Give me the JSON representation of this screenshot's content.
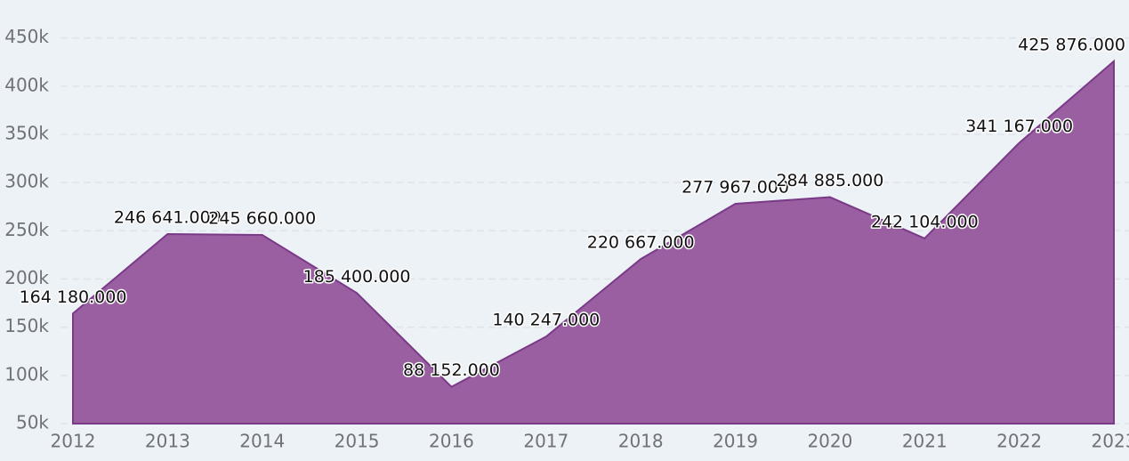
{
  "chart_data": {
    "type": "area",
    "categories": [
      "2012",
      "2013",
      "2014",
      "2015",
      "2016",
      "2017",
      "2018",
      "2019",
      "2020",
      "2021",
      "2022",
      "2023"
    ],
    "series": [
      {
        "color": "#9a5fa0",
        "values": [
          164180,
          246641,
          245660,
          185400,
          88152,
          140247,
          220667,
          277967,
          284885,
          242104,
          341167,
          425876
        ],
        "value_labels": [
          "164 180.000",
          "246 641.000",
          "245 660.000",
          "185 400.000",
          "88 152.000",
          "140 247.000",
          "220 667.000",
          "277 967.000",
          "284 885.000",
          "242 104.000",
          "341 167.000",
          "425 876.000"
        ]
      }
    ],
    "ylim": [
      50000,
      470000
    ],
    "yticks": [
      {
        "value": 50000,
        "label": "50k"
      },
      {
        "value": 100000,
        "label": "100k"
      },
      {
        "value": 150000,
        "label": "150k"
      },
      {
        "value": 200000,
        "label": "200k"
      },
      {
        "value": 250000,
        "label": "250k"
      },
      {
        "value": 300000,
        "label": "300k"
      },
      {
        "value": 350000,
        "label": "350k"
      },
      {
        "value": 400000,
        "label": "400k"
      },
      {
        "value": 450000,
        "label": "450k"
      }
    ],
    "grid": true
  }
}
